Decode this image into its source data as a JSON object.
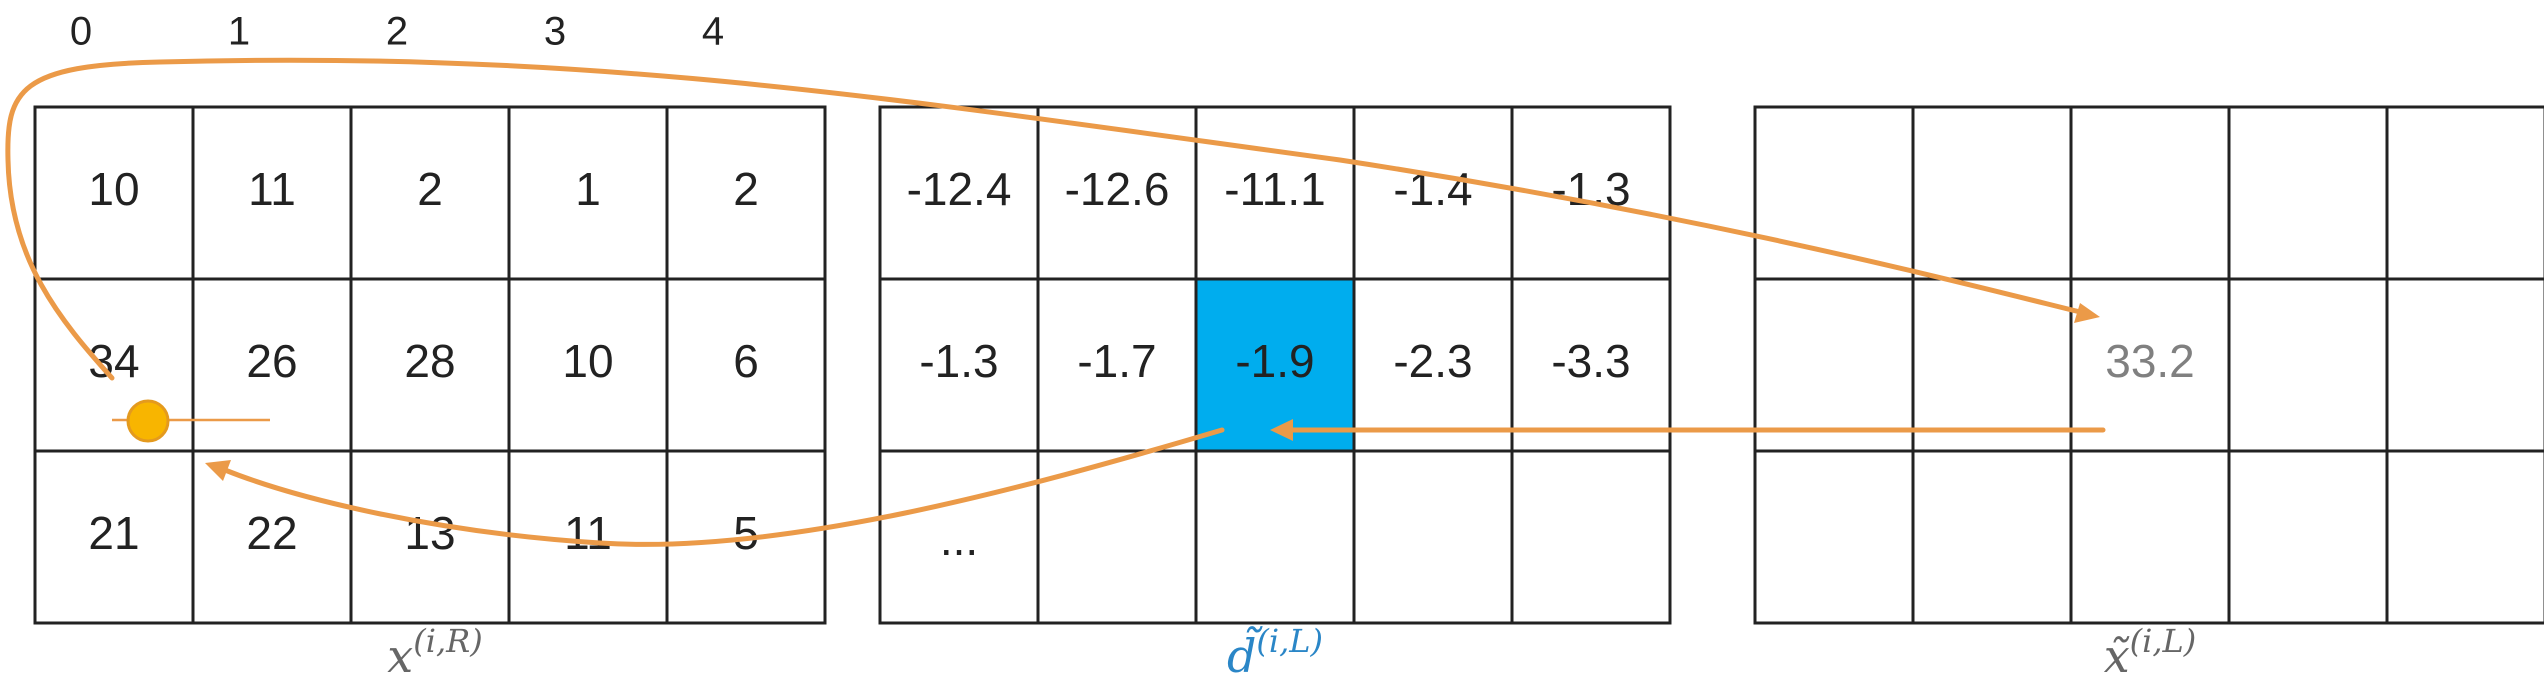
{
  "column_indices": [
    "0",
    "1",
    "2",
    "3",
    "4"
  ],
  "grids": [
    {
      "id": "x",
      "label": {
        "base": "x",
        "sup": "(i,R)"
      },
      "rows": [
        [
          "10",
          "11",
          "2",
          "1",
          "2"
        ],
        [
          "34",
          "26",
          "28",
          "10",
          "6"
        ],
        [
          "21",
          "22",
          "13",
          "11",
          "5"
        ]
      ]
    },
    {
      "id": "d",
      "label": {
        "base": "d̃",
        "sup": "(i,L)"
      },
      "highlight_cell": [
        1,
        2
      ],
      "highlight_color": "#00adee",
      "rows": [
        [
          "-12.4",
          "-12.6",
          "-11.1",
          "-1.4",
          "-1.3"
        ],
        [
          "-1.3",
          "-1.7",
          "-1.9",
          "-2.3",
          "-3.3"
        ],
        [
          "...",
          "",
          "",
          "",
          ""
        ]
      ]
    },
    {
      "id": "xt",
      "label": {
        "base": "x̃",
        "sup": "(i,L)"
      },
      "rows": [
        [
          "",
          "",
          "",
          "",
          ""
        ],
        [
          "",
          "",
          "33.2",
          "",
          ""
        ],
        [
          "",
          "",
          "",
          "",
          ""
        ]
      ]
    }
  ],
  "colors": {
    "arrow": "#eb9a48",
    "dot": "#f8b500",
    "highlight": "#00adee",
    "label_blue": "#2a86c7",
    "label_gray": "#666666"
  }
}
